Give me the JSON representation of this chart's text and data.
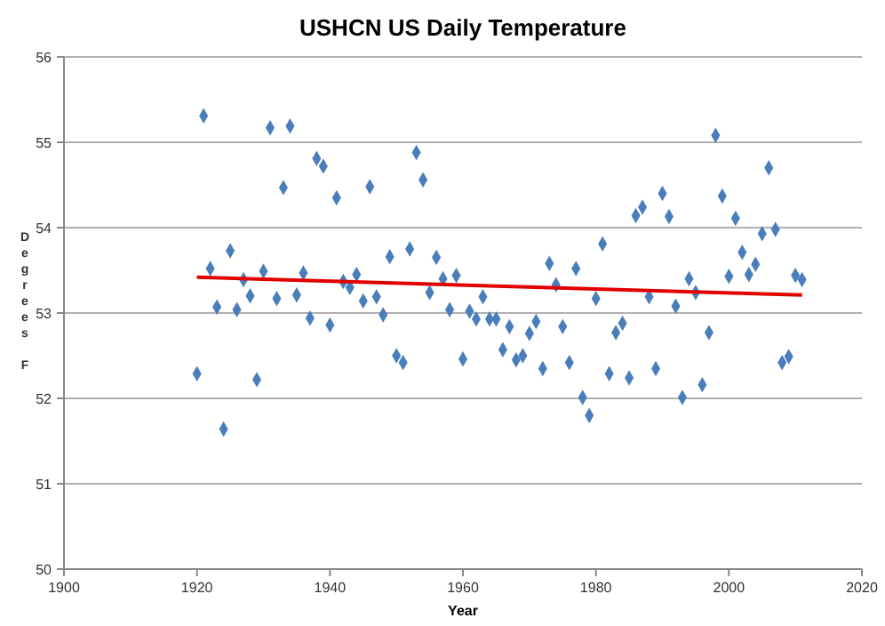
{
  "chart_data": {
    "type": "scatter",
    "title": "USHCN US Daily Temperature",
    "xlabel": "Year",
    "ylabel": "Degrees F",
    "xlim": [
      1900,
      2020
    ],
    "xticks": [
      1900,
      1920,
      1940,
      1960,
      1980,
      2000,
      2020
    ],
    "ylim": [
      50,
      56
    ],
    "yticks": [
      50,
      51,
      52,
      53,
      54,
      55,
      56
    ],
    "grid": "y",
    "marker": "diamond",
    "series": [
      {
        "color": "#4a7ebb",
        "x": [
          1920,
          1921,
          1922,
          1923,
          1924,
          1925,
          1926,
          1927,
          1928,
          1929,
          1930,
          1931,
          1932,
          1933,
          1934,
          1935,
          1936,
          1937,
          1938,
          1939,
          1940,
          1941,
          1942,
          1943,
          1944,
          1945,
          1946,
          1947,
          1948,
          1949,
          1950,
          1951,
          1952,
          1953,
          1954,
          1955,
          1956,
          1957,
          1958,
          1959,
          1960,
          1961,
          1962,
          1963,
          1964,
          1965,
          1966,
          1967,
          1968,
          1969,
          1970,
          1971,
          1972,
          1973,
          1974,
          1975,
          1976,
          1977,
          1978,
          1979,
          1980,
          1981,
          1982,
          1983,
          1984,
          1985,
          1986,
          1987,
          1988,
          1989,
          1990,
          1991,
          1992,
          1993,
          1994,
          1995,
          1996,
          1997,
          1998,
          1999,
          2000,
          2001,
          2002,
          2003,
          2004,
          2005,
          2006,
          2007,
          2008,
          2009,
          2010,
          2011
        ],
        "values": [
          52.29,
          55.31,
          53.52,
          53.07,
          51.64,
          53.73,
          53.04,
          53.39,
          53.2,
          52.22,
          53.49,
          55.17,
          53.17,
          54.47,
          55.19,
          53.21,
          53.47,
          52.94,
          54.81,
          54.72,
          52.86,
          54.35,
          53.37,
          53.3,
          53.45,
          53.14,
          54.48,
          53.19,
          52.98,
          53.66,
          52.5,
          52.42,
          53.75,
          54.88,
          54.56,
          53.24,
          53.65,
          53.4,
          53.04,
          53.44,
          52.46,
          53.02,
          52.93,
          53.19,
          52.93,
          52.93,
          52.57,
          52.84,
          52.45,
          52.5,
          52.76,
          52.9,
          52.35,
          53.58,
          53.33,
          52.84,
          52.42,
          53.52,
          52.01,
          51.8,
          53.17,
          53.81,
          52.29,
          52.77,
          52.88,
          52.24,
          54.14,
          54.24,
          53.19,
          52.35,
          54.4,
          54.13,
          53.08,
          52.01,
          53.4,
          53.24,
          52.16,
          52.77,
          55.08,
          54.37,
          53.43,
          54.11,
          53.71,
          53.45,
          53.57,
          53.93,
          54.7,
          53.98,
          52.42,
          52.49,
          53.44,
          53.39
        ]
      },
      {
        "type": "line",
        "color": "#e00000",
        "marker": "none",
        "x": [
          1920,
          2011
        ],
        "values": [
          53.42,
          53.21
        ]
      }
    ]
  }
}
